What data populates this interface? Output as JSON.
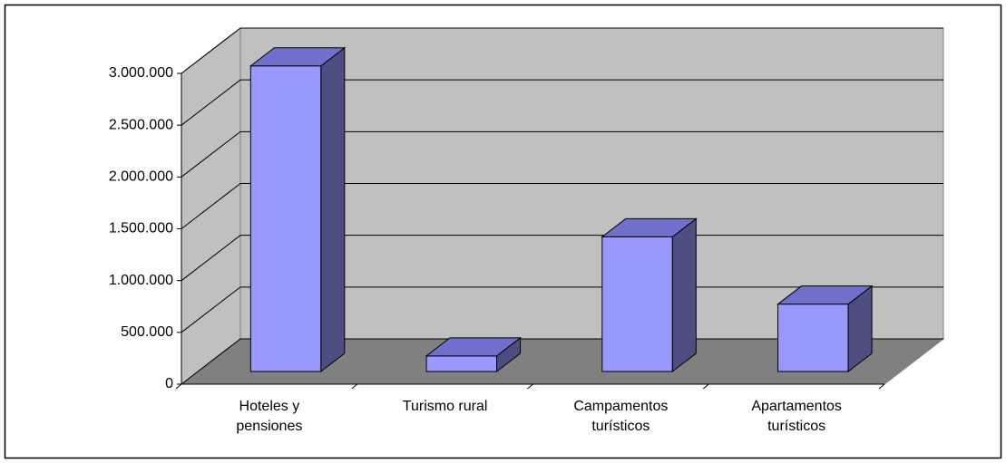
{
  "chart_data": {
    "type": "bar3d",
    "categories": [
      "Hoteles y pensiones",
      "Turismo rural",
      "Campamentos turísticos",
      "Apartamentos turísticos"
    ],
    "values": [
      2950000,
      150000,
      1300000,
      650000
    ],
    "color": "#9999ff",
    "ylim": [
      0,
      3000000
    ],
    "yticks": [
      {
        "value": 0,
        "label": "0"
      },
      {
        "value": 500000,
        "label": "500.000"
      },
      {
        "value": 1000000,
        "label": "1.000.000"
      },
      {
        "value": 1500000,
        "label": "1.500.000"
      },
      {
        "value": 2000000,
        "label": "2.000.000"
      },
      {
        "value": 2500000,
        "label": "2.500.000"
      },
      {
        "value": 3000000,
        "label": "3.000.000"
      }
    ],
    "grid": true
  }
}
